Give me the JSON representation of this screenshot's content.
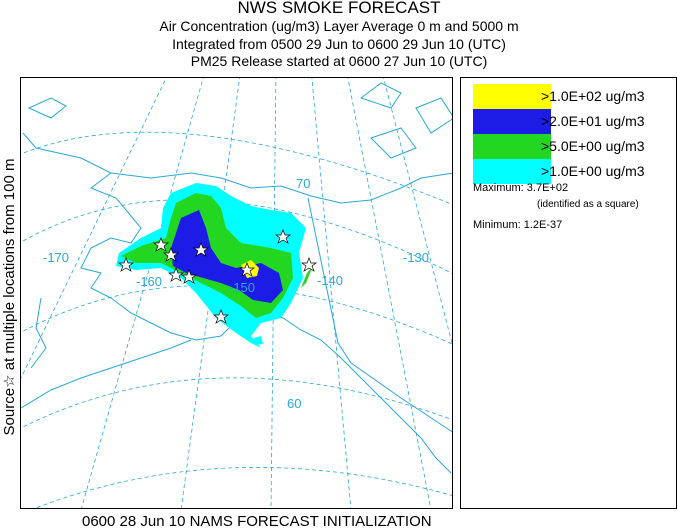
{
  "title": {
    "line1": "NWS SMOKE FORECAST",
    "line2": "Air Concentration (ug/m3) Layer Average    0 m and  5000 m",
    "line3": "Integrated from 0500 29 Jun to 0600 29 Jun 10 (UTC)",
    "line4": "PM25 Release started at 0600 27 Jun 10 (UTC)"
  },
  "side_label": "Source☆  at multiple locations  from  100 m",
  "map": {
    "graticule_labels": [
      "-170",
      "-160",
      "-150",
      "-140",
      "-130",
      "70",
      "60"
    ],
    "colors": {
      "graticule": "#2aa8d6",
      "coast": "#2aa8d6"
    }
  },
  "legend": {
    "entries": [
      {
        "label": ">1.0E+02 ug/m3",
        "color": "#ffff00"
      },
      {
        "label": ">2.0E+01 ug/m3",
        "color": "#1c1ce6"
      },
      {
        "label": ">5.0E+00 ug/m3",
        "color": "#22d622"
      },
      {
        "label": ">1.0E+00 ug/m3",
        "color": "#00ffff"
      }
    ],
    "maximum_label": "Maximum: 3.7E+02",
    "maximum_note": "(identified as a square)",
    "minimum_label": "Minimum: 1.2E-37"
  },
  "footer": "0600 28 Jun 10 NAMS FORECAST INITIALIZATION"
}
